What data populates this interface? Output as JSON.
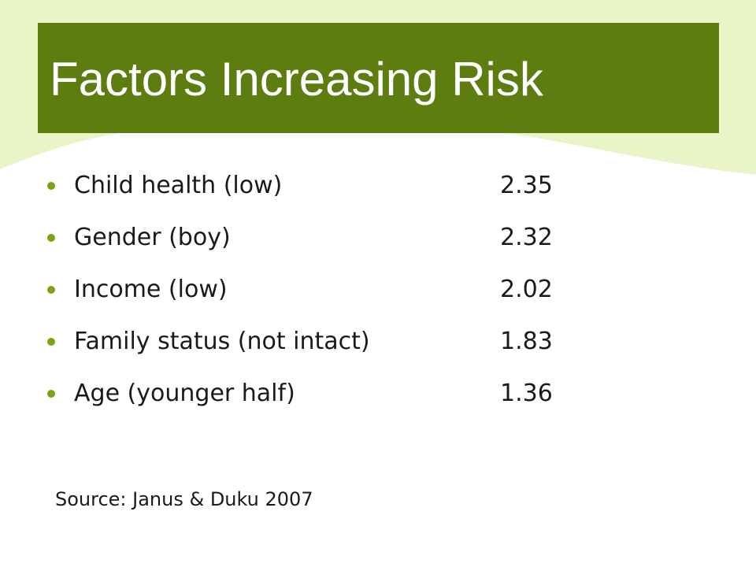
{
  "slide": {
    "title": "Factors Increasing Risk",
    "factors": [
      {
        "label": "Child health (low)",
        "value": "2.35"
      },
      {
        "label": "Gender (boy)",
        "value": "2.32"
      },
      {
        "label": "Income (low)",
        "value": "2.02"
      },
      {
        "label": "Family status (not intact)",
        "value": "1.83"
      },
      {
        "label": "Age (younger half)",
        "value": "1.36"
      }
    ],
    "source": "Source: Janus & Duku 2007"
  },
  "colors": {
    "title_bar": "#5e7d10",
    "wave": "#e9f5c6",
    "bullet": "#7aa318",
    "text": "#1a1a1a"
  }
}
